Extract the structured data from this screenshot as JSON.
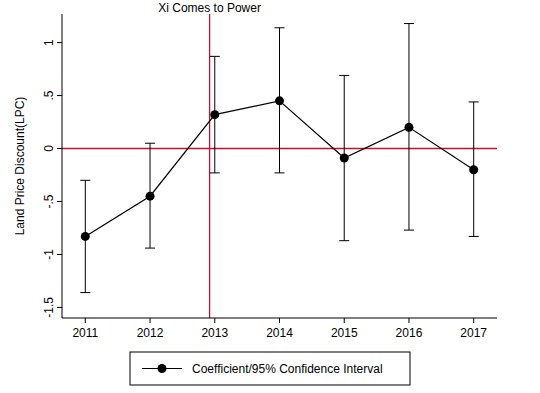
{
  "chart_data": {
    "type": "line",
    "y_label": "Land Price Discount(LPC)",
    "x": [
      2011,
      2012,
      2013,
      2014,
      2015,
      2016,
      2017
    ],
    "series": [
      {
        "name": "Coefficient/95% Confidence Interval",
        "color": "#000000",
        "marker": "circle",
        "line_style": "solid",
        "values": [
          -0.83,
          -0.45,
          0.32,
          0.45,
          -0.09,
          0.2,
          -0.2
        ],
        "ci_low": [
          -1.36,
          -0.94,
          -0.23,
          -0.23,
          -0.87,
          -0.77,
          -0.83
        ],
        "ci_high": [
          -0.3,
          0.05,
          0.87,
          1.14,
          0.69,
          1.18,
          0.44
        ]
      }
    ],
    "xlim": [
      2010.64,
      2017.36
    ],
    "xticks": [
      2011,
      2012,
      2013,
      2014,
      2015,
      2016,
      2017
    ],
    "ylim": [
      -1.6,
      1.27
    ],
    "yticks": [
      {
        "value": -1.5,
        "label": "-1.5"
      },
      -1,
      {
        "value": -0.5,
        "label": "-.5"
      },
      0,
      {
        "value": 0.5,
        "label": ".5"
      },
      1
    ],
    "reference_lines": [
      {
        "axis": "x",
        "value": 2012.92,
        "label": "Xi Comes to Power",
        "color": "#c8102e"
      },
      {
        "axis": "y",
        "value": 0,
        "color": "#c8102e"
      }
    ],
    "grid": false,
    "legend": "bottom"
  }
}
